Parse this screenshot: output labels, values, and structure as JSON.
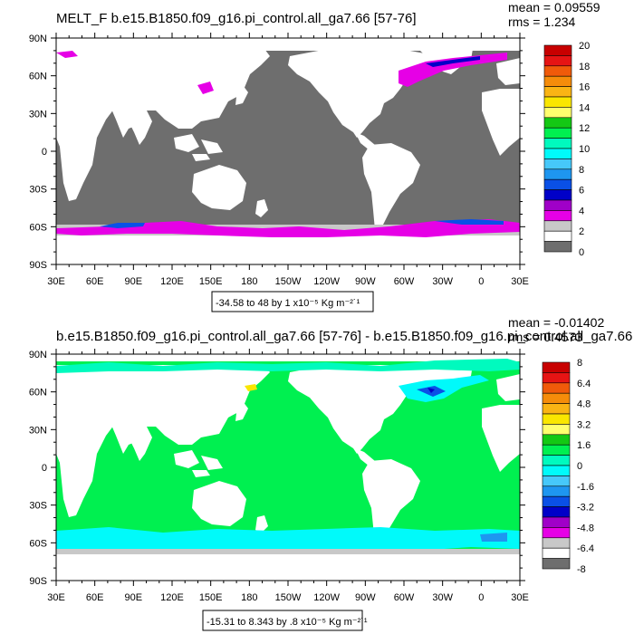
{
  "chart_data": [
    {
      "type": "heatmap",
      "title": "MELT_F b.e15.B1850.f09_g16.pi_control.all_ga7.66 [57-76]",
      "stats": {
        "mean": "mean = 0.09559",
        "rms": "rms = 1.234"
      },
      "range_label": "-34.58 to 48 by 1 x10⁻⁵ Kg m⁻²˙¹",
      "x_ticks": [
        "30E",
        "60E",
        "90E",
        "120E",
        "150E",
        "180",
        "150W",
        "120W",
        "90W",
        "60W",
        "30W",
        "0",
        "30E"
      ],
      "y_ticks": [
        "90N",
        "60N",
        "30N",
        "0",
        "30S",
        "60S",
        "90S"
      ],
      "xlim": [
        30,
        390
      ],
      "ylim": [
        -90,
        90
      ],
      "grid": false,
      "colorbar": {
        "labels": [
          "20",
          "18",
          "16",
          "14",
          "12",
          "10",
          "8",
          "6",
          "4",
          "2",
          "0"
        ],
        "colors": [
          "#c80000",
          "#e61414",
          "#f05a0a",
          "#f58c0a",
          "#fab414",
          "#fae600",
          "#ffff6e",
          "#14c814",
          "#00f050",
          "#00fabe",
          "#00fafa",
          "#46c8fa",
          "#1e96f0",
          "#0a50e6",
          "#0000c8",
          "#a000c8",
          "#e600e6",
          "#c8c8c8",
          "#ffffff",
          "#6e6e6e"
        ]
      },
      "values_note": "Field mostly 0 (grey ocean); positive melt flux (0-6) along Antarctic coast and Arctic/Greenland margins"
    },
    {
      "type": "heatmap",
      "title": "b.e15.B1850.f09_g16.pi_control.all_ga7.66 [57-76] - b.e15.B1850.f09_g16.pi_control.all_ga7.66 [57-76]",
      "stats": {
        "mean": "mean = -0.01402",
        "rms": "rms = 0.4573"
      },
      "range_label": "-15.31 to 8.343 by .8 x10⁻⁵ Kg m⁻²˙¹",
      "x_ticks": [
        "30E",
        "60E",
        "90E",
        "120E",
        "150E",
        "180",
        "150W",
        "120W",
        "90W",
        "60W",
        "30W",
        "0",
        "30E"
      ],
      "y_ticks": [
        "90N",
        "60N",
        "30N",
        "0",
        "30S",
        "60S",
        "90S"
      ],
      "xlim": [
        30,
        390
      ],
      "ylim": [
        -90,
        90
      ],
      "grid": false,
      "colorbar": {
        "labels": [
          "8",
          "6.4",
          "4.8",
          "3.2",
          "1.6",
          "0",
          "-1.6",
          "-3.2",
          "-4.8",
          "-6.4",
          "-8"
        ],
        "colors": [
          "#c80000",
          "#e61414",
          "#f05a0a",
          "#f58c0a",
          "#fab414",
          "#fae600",
          "#ffff6e",
          "#14c814",
          "#00f050",
          "#00fabe",
          "#00fafa",
          "#46c8fa",
          "#1e96f0",
          "#0a50e6",
          "#0000c8",
          "#a000c8",
          "#e600e6",
          "#c8c8c8",
          "#ffffff",
          "#6e6e6e"
        ]
      },
      "values_note": "Differences mostly 0 (green ocean); small negative values (cyan/blue) in Southern Ocean and North Atlantic"
    }
  ]
}
